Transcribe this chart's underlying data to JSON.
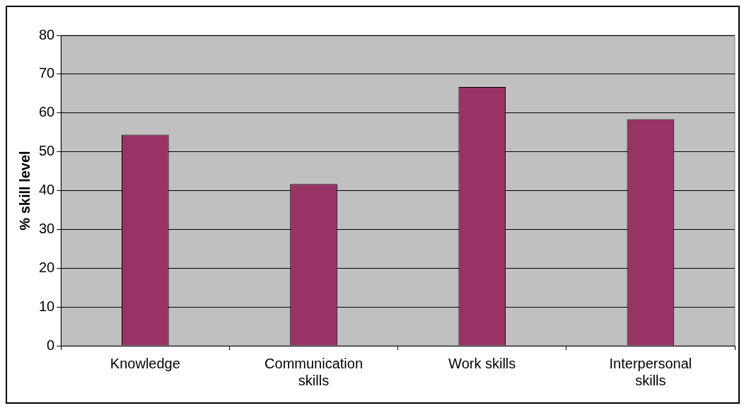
{
  "chart_data": {
    "type": "bar",
    "ylabel": "% skill level",
    "categories": [
      "Knowledge",
      "Communication skills",
      "Work skills",
      "Interpersonal skills"
    ],
    "values": [
      54.4,
      41.7,
      66.7,
      58.4
    ],
    "color": "#993366",
    "ylim": [
      0,
      80
    ],
    "yticks": [
      0,
      10,
      20,
      30,
      40,
      50,
      60,
      70,
      80
    ],
    "grid": "y",
    "legend": false
  }
}
